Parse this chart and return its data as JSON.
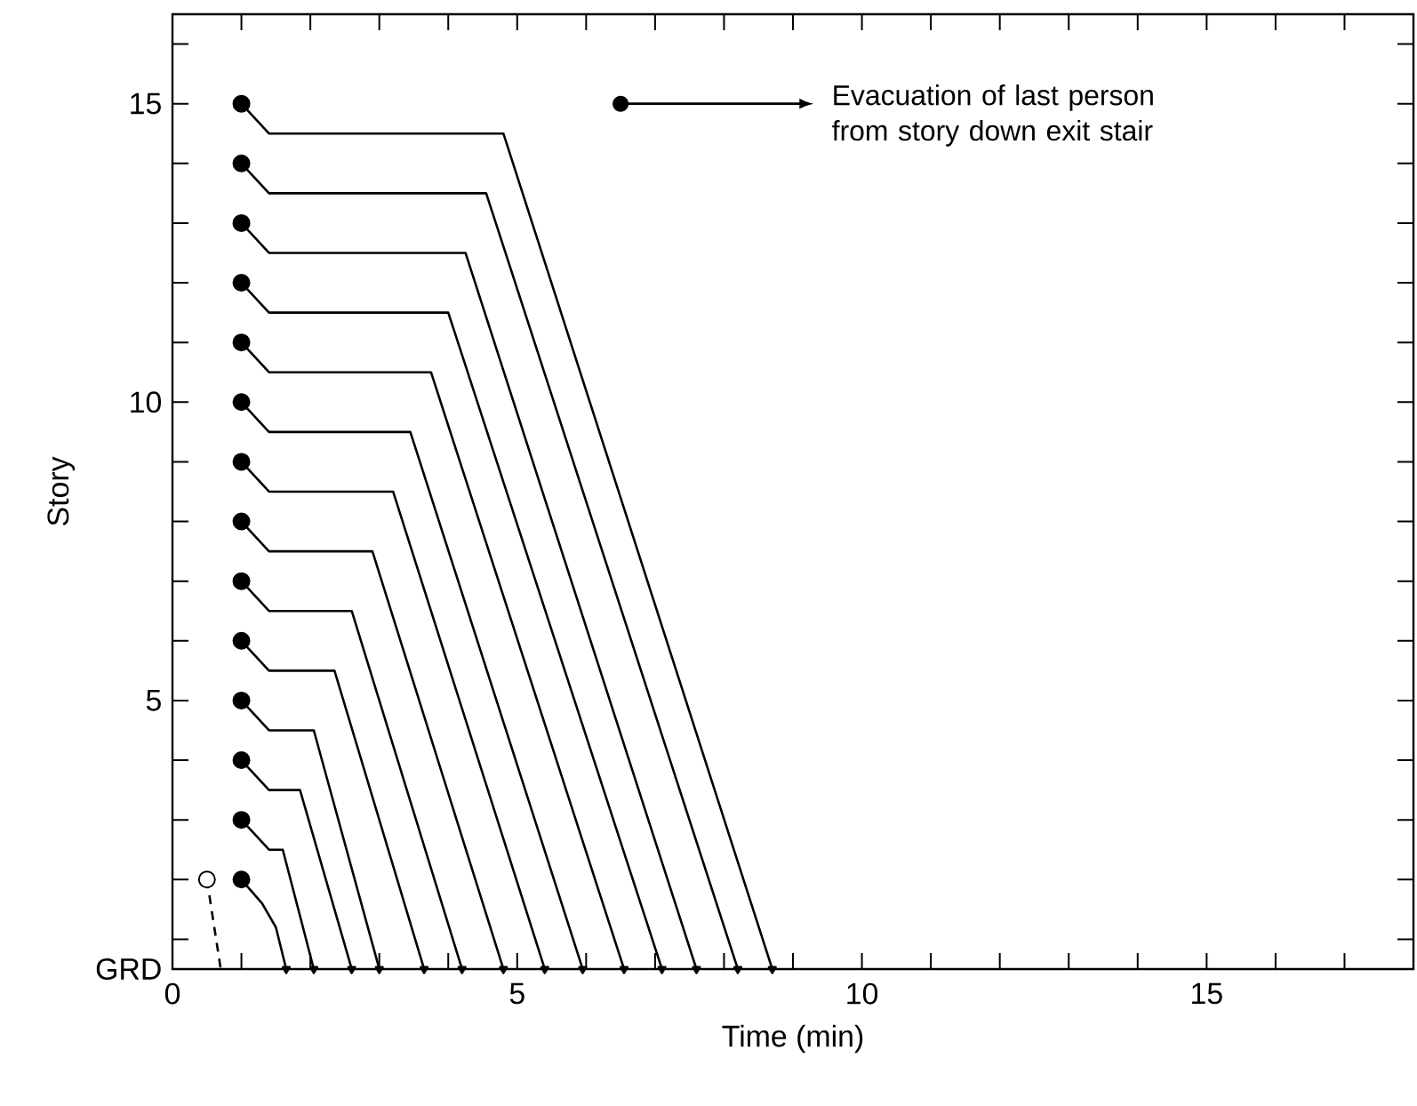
{
  "chart_data": {
    "type": "line",
    "xlabel": "Time (min)",
    "ylabel": "Story",
    "xlim": [
      0,
      18
    ],
    "ylim": [
      0.5,
      16.5
    ],
    "xticks": [
      0,
      {
        "value": 1,
        "label": null
      },
      {
        "value": 2,
        "label": null
      },
      {
        "value": 3,
        "label": null
      },
      {
        "value": 4,
        "label": null
      },
      5,
      {
        "value": 6,
        "label": null
      },
      {
        "value": 7,
        "label": null
      },
      {
        "value": 8,
        "label": null
      },
      {
        "value": 9,
        "label": null
      },
      10,
      {
        "value": 11,
        "label": null
      },
      {
        "value": 12,
        "label": null
      },
      {
        "value": 13,
        "label": null
      },
      {
        "value": 14,
        "label": null
      },
      15,
      {
        "value": 16,
        "label": null
      },
      {
        "value": 17,
        "label": null
      }
    ],
    "yticks": [
      {
        "value": 0.5,
        "label": "GRD"
      },
      {
        "value": 1,
        "label": null
      },
      {
        "value": 2,
        "label": null
      },
      {
        "value": 3,
        "label": null
      },
      {
        "value": 4,
        "label": null
      },
      5,
      {
        "value": 6,
        "label": null
      },
      {
        "value": 7,
        "label": null
      },
      {
        "value": 8,
        "label": null
      },
      {
        "value": 9,
        "label": null
      },
      10,
      {
        "value": 11,
        "label": null
      },
      {
        "value": 12,
        "label": null
      },
      {
        "value": 13,
        "label": null
      },
      {
        "value": 14,
        "label": null
      },
      15,
      {
        "value": 16,
        "label": null
      }
    ],
    "annotations": [
      "Evacuation of last person from story down exit stair"
    ],
    "series": [
      {
        "color": "#000000",
        "line_style": "solid",
        "x": [
          1,
          1.4,
          4.8,
          8.7
        ],
        "values": [
          15,
          14.5,
          14.5,
          0.5
        ]
      },
      {
        "color": "#000000",
        "line_style": "solid",
        "x": [
          1,
          1.4,
          4.55,
          8.2
        ],
        "values": [
          14,
          13.5,
          13.5,
          0.5
        ]
      },
      {
        "color": "#000000",
        "line_style": "solid",
        "x": [
          1,
          1.4,
          4.25,
          7.6
        ],
        "values": [
          13,
          12.5,
          12.5,
          0.5
        ]
      },
      {
        "color": "#000000",
        "line_style": "solid",
        "x": [
          1,
          1.4,
          4.0,
          7.1
        ],
        "values": [
          12,
          11.5,
          11.5,
          0.5
        ]
      },
      {
        "color": "#000000",
        "line_style": "solid",
        "x": [
          1,
          1.4,
          3.75,
          6.55
        ],
        "values": [
          11,
          10.5,
          10.5,
          0.5
        ]
      },
      {
        "color": "#000000",
        "line_style": "solid",
        "x": [
          1,
          1.4,
          3.45,
          5.95
        ],
        "values": [
          10,
          9.5,
          9.5,
          0.5
        ]
      },
      {
        "color": "#000000",
        "line_style": "solid",
        "x": [
          1,
          1.4,
          3.2,
          5.4
        ],
        "values": [
          9,
          8.5,
          8.5,
          0.5
        ]
      },
      {
        "color": "#000000",
        "line_style": "solid",
        "x": [
          1,
          1.4,
          2.9,
          4.8
        ],
        "values": [
          8,
          7.5,
          7.5,
          0.5
        ]
      },
      {
        "color": "#000000",
        "line_style": "solid",
        "x": [
          1,
          1.4,
          2.6,
          4.2
        ],
        "values": [
          7,
          6.5,
          6.5,
          0.5
        ]
      },
      {
        "color": "#000000",
        "line_style": "solid",
        "x": [
          1,
          1.4,
          2.35,
          3.65
        ],
        "values": [
          6,
          5.5,
          5.5,
          0.5
        ]
      },
      {
        "color": "#000000",
        "line_style": "solid",
        "x": [
          1,
          1.4,
          2.05,
          3.0
        ],
        "values": [
          5,
          4.5,
          4.5,
          0.5
        ]
      },
      {
        "color": "#000000",
        "line_style": "solid",
        "x": [
          1,
          1.4,
          1.85,
          2.6
        ],
        "values": [
          4,
          3.5,
          3.5,
          0.5
        ]
      },
      {
        "color": "#000000",
        "line_style": "solid",
        "x": [
          1,
          1.4,
          1.6,
          2.05
        ],
        "values": [
          3,
          2.5,
          2.5,
          0.5
        ]
      },
      {
        "color": "#000000",
        "line_style": "solid",
        "x": [
          1,
          1.3,
          1.5,
          1.65
        ],
        "values": [
          2,
          1.6,
          1.2,
          0.5
        ]
      },
      {
        "color": "#000000",
        "line_style": "dashed",
        "x": [
          0.5,
          0.7
        ],
        "values": [
          2,
          0.5
        ]
      },
      {
        "type": "scatter",
        "color": "#000000",
        "marker": "circle",
        "x": [
          1,
          1,
          1,
          1,
          1,
          1,
          1,
          1,
          1,
          1,
          1,
          1,
          1,
          1
        ],
        "values": [
          15,
          14,
          13,
          12,
          11,
          10,
          9,
          8,
          7,
          6,
          5,
          4,
          3,
          2
        ]
      },
      {
        "type": "scatter",
        "color": "#ffffff",
        "marker": "circle",
        "x": [
          0.5
        ],
        "values": [
          2
        ]
      }
    ]
  }
}
